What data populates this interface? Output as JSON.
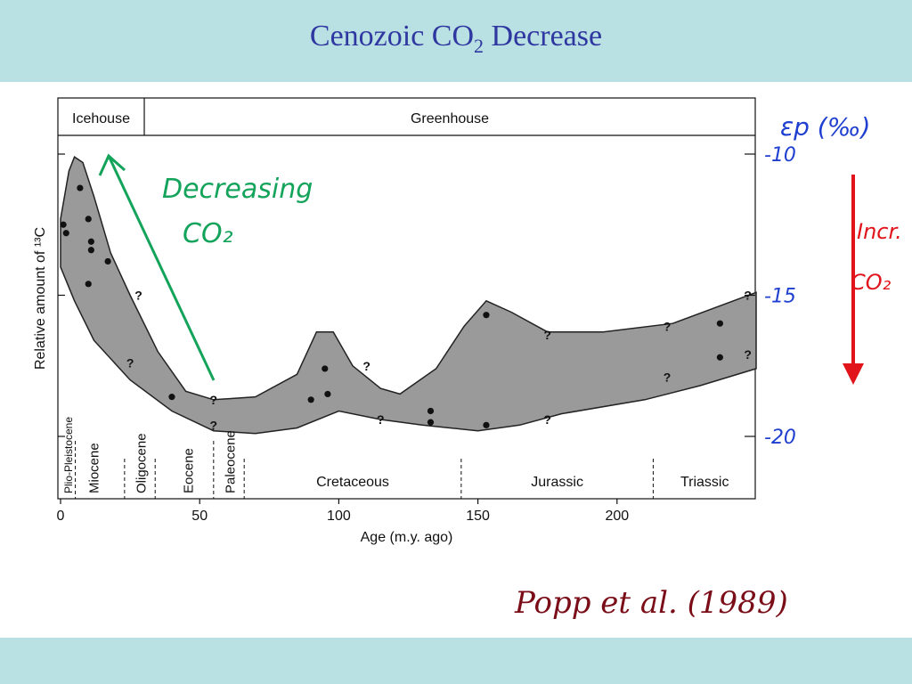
{
  "slide": {
    "title_main": "Cenozoic CO",
    "title_sub": "2",
    "title_rest": " Decrease"
  },
  "chart_data": {
    "type": "area",
    "xlabel": "Age (m.y. ago)",
    "ylabel": "Relative amount of ¹³C",
    "xlim": [
      0,
      250
    ],
    "x_ticks": [
      0,
      50,
      100,
      150,
      200
    ],
    "regimes": [
      "Icehouse",
      "Greenhouse"
    ],
    "periods": [
      "Plio-Pleistocene",
      "Miocene",
      "Oligocene",
      "Eocene",
      "Paleocene",
      "Cretaceous",
      "Jurassic",
      "Triassic"
    ],
    "right_axis": {
      "label": "εp (‰)",
      "ticks": [
        "-10",
        "-15",
        "-20"
      ],
      "values": [
        -10,
        -15,
        -20
      ]
    },
    "band": {
      "upper": [
        [
          0,
          -12.3
        ],
        [
          3,
          -10.6
        ],
        [
          5,
          -10.1
        ],
        [
          8,
          -10.3
        ],
        [
          12,
          -11.5
        ],
        [
          18,
          -13.5
        ],
        [
          25,
          -15.0
        ],
        [
          35,
          -17.0
        ],
        [
          45,
          -18.4
        ],
        [
          55,
          -18.7
        ],
        [
          70,
          -18.6
        ],
        [
          85,
          -17.8
        ],
        [
          92,
          -16.3
        ],
        [
          98,
          -16.3
        ],
        [
          105,
          -17.5
        ],
        [
          115,
          -18.3
        ],
        [
          122,
          -18.5
        ],
        [
          135,
          -17.6
        ],
        [
          145,
          -16.1
        ],
        [
          153,
          -15.2
        ],
        [
          162,
          -15.6
        ],
        [
          175,
          -16.3
        ],
        [
          195,
          -16.3
        ],
        [
          220,
          -16.0
        ],
        [
          250,
          -14.9
        ]
      ],
      "lower": [
        [
          0,
          -14.0
        ],
        [
          5,
          -15.2
        ],
        [
          12,
          -16.6
        ],
        [
          25,
          -18.0
        ],
        [
          40,
          -19.1
        ],
        [
          55,
          -19.8
        ],
        [
          70,
          -19.9
        ],
        [
          85,
          -19.7
        ],
        [
          100,
          -19.1
        ],
        [
          115,
          -19.4
        ],
        [
          130,
          -19.6
        ],
        [
          150,
          -19.8
        ],
        [
          165,
          -19.6
        ],
        [
          180,
          -19.2
        ],
        [
          210,
          -18.7
        ],
        [
          230,
          -18.2
        ],
        [
          250,
          -17.6
        ]
      ]
    },
    "points": [
      [
        1,
        -12.5
      ],
      [
        2,
        -12.8
      ],
      [
        7,
        -11.2
      ],
      [
        10,
        -12.3
      ],
      [
        11,
        -13.1
      ],
      [
        11,
        -13.4
      ],
      [
        17,
        -13.8
      ],
      [
        10,
        -14.6
      ],
      [
        40,
        -18.6
      ],
      [
        90,
        -18.7
      ],
      [
        95,
        -17.6
      ],
      [
        96,
        -18.5
      ],
      [
        133,
        -19.1
      ],
      [
        133,
        -19.5
      ],
      [
        153,
        -15.7
      ],
      [
        153,
        -19.6
      ],
      [
        237,
        -16.0
      ],
      [
        237,
        -17.2
      ]
    ],
    "uncertain_points": [
      [
        28,
        -15.0
      ],
      [
        25,
        -17.4
      ],
      [
        55,
        -18.7
      ],
      [
        55,
        -19.6
      ],
      [
        110,
        -17.5
      ],
      [
        115,
        -19.4
      ],
      [
        175,
        -16.4
      ],
      [
        175,
        -19.4
      ],
      [
        218,
        -16.1
      ],
      [
        218,
        -17.9
      ],
      [
        247,
        -15.0
      ],
      [
        247,
        -17.1
      ]
    ],
    "annotations": {
      "decreasing_line1": "Decreasing",
      "decreasing_line2": "CO₂",
      "incr_line1": "Incr.",
      "incr_line2": "CO₂",
      "uncertain_mark": "?",
      "citation": "Popp et al. (1989)"
    }
  }
}
